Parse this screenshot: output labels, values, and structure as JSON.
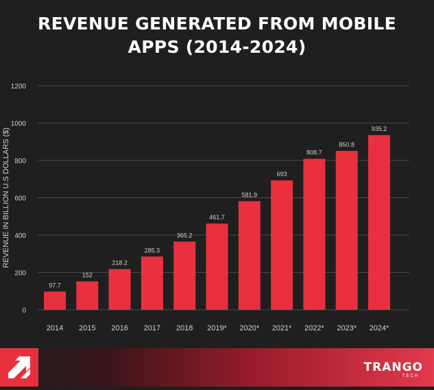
{
  "header": {
    "title_line1": "REVENUE GENERATED FROM MOBILE",
    "title_line2": "APPS (2014-2024)"
  },
  "footer": {
    "brand_name": "TRANGO",
    "brand_sub": "TECH",
    "logo_icon": "trango-arrow-logo-icon"
  },
  "colors": {
    "background": "#1f1f1f",
    "bar": "#e8303f",
    "grid": "#4a4a4a",
    "text": "#cfcfcf"
  },
  "chart_data": {
    "type": "bar",
    "ylabel": "REVENUE IN BILLION U.S DOLLARS ($)",
    "xlabel": "",
    "ylim": [
      0,
      1200
    ],
    "yticks": [
      0,
      200,
      400,
      600,
      800,
      1000,
      1200
    ],
    "grid": true,
    "categories": [
      "2014",
      "2015",
      "2016",
      "2017",
      "2018",
      "2019*",
      "2020*",
      "2021*",
      "2022*",
      "2023*",
      "2024*"
    ],
    "values": [
      97.7,
      152,
      218.2,
      285.3,
      365.2,
      461.7,
      581.9,
      693,
      808.7,
      850.8,
      935.2
    ],
    "data_labels": [
      "97.7",
      "152",
      "218.2",
      "285.3",
      "365.2",
      "461.7",
      "581.9",
      "693",
      "808.7",
      "850.8",
      "935.2"
    ]
  }
}
